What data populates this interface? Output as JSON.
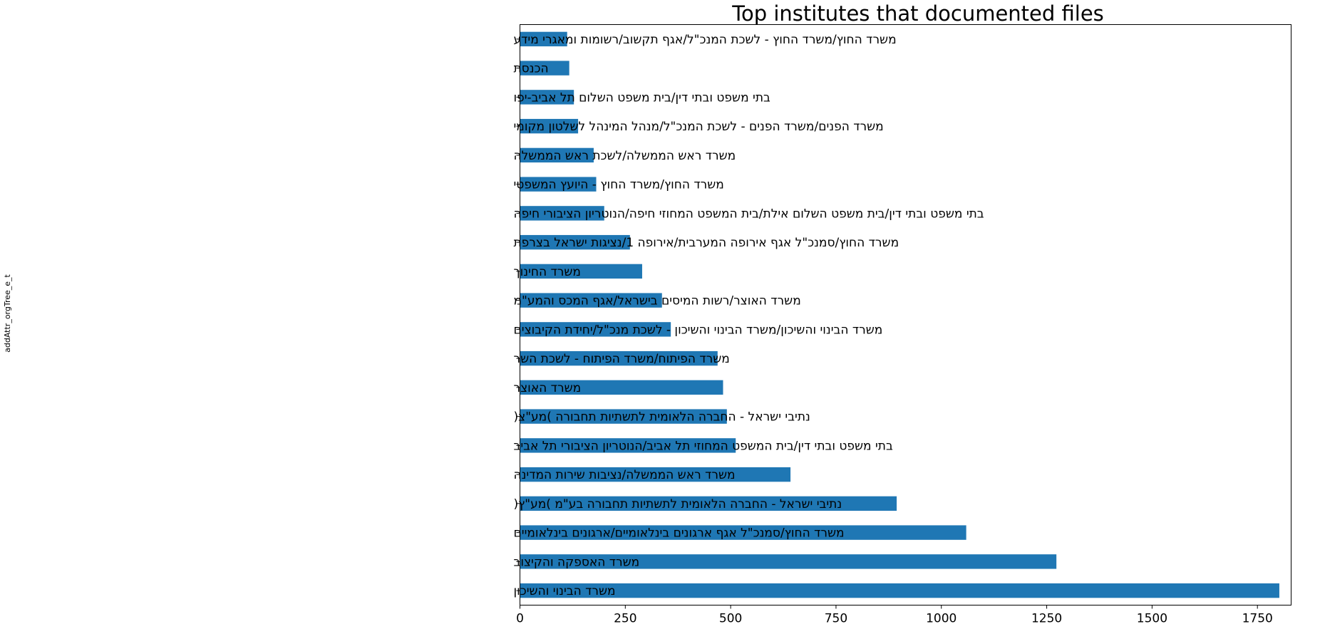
{
  "chart_data": {
    "type": "bar",
    "orientation": "horizontal",
    "title": "Top institutes that documented files",
    "xlabel": "",
    "ylabel": "addAttr_orgTree_e_t",
    "xlim": [
      0,
      1830
    ],
    "x_ticks": [
      0,
      250,
      500,
      750,
      1000,
      1250,
      1500,
      1750
    ],
    "grid": false,
    "bar_color": "#1f77b4",
    "categories": [
      "משרד החוץ/משרד החוץ - לשכת המנכ\"ל/אגף תקשוב/רשומות ומאגרי מידע",
      "הכנסת",
      "בתי משפט ובתי דין/בית משפט השלום תל אביב-יפו",
      "משרד הפנים/משרד הפנים - לשכת המנכ\"ל/מנהל המינהל לשלטון מקומי",
      "משרד ראש הממשלה/לשכת ראש הממשלה",
      "משרד החוץ/משרד החוץ - היועץ המשפטי",
      "בתי משפט ובתי דין/בית משפט השלום אילת/בית המשפט המחוזי חיפה/הנוטריון הציבורי חיפה",
      "משרד החוץ/סמנכ\"ל אגף אירופה המערבית/אירופה 1/נציגות ישראל בצרפת",
      "משרד החינוך",
      "משרד האוצר/רשות המיסים בישראל/אגף המכס והמע\"מ",
      "משרד הבינוי והשיכון/משרד הבינוי והשיכון - לשכת מנכ\"ל/יחידת הקיבוצים",
      "משרד הפיתוח/משרד הפיתוח - לשכת השר",
      "משרד האוצר",
      "נתיבי ישראל - החברה הלאומית לתשתיות תחבורה )מע\"צ(",
      "בתי משפט ובתי דין/בית המשפט המחוזי תל אביב/הנוטריון הציבורי תל אביב",
      "משרד ראש הממשלה/נציבות שירות המדינה",
      "נתיבי ישראל - החברה הלאומית לתשתיות תחבורה בע\"מ )מע\"ץ(",
      "משרד החוץ/סמנכ\"ל אגף ארגונים בינלאומיים/ארגונים בינלאומיים",
      "משרד האספקה והקיצוב",
      "משרד הבינוי והשיכון"
    ],
    "values": [
      112,
      117,
      128,
      138,
      175,
      181,
      200,
      261,
      290,
      337,
      358,
      469,
      482,
      491,
      512,
      642,
      894,
      1059,
      1273,
      1802
    ]
  }
}
